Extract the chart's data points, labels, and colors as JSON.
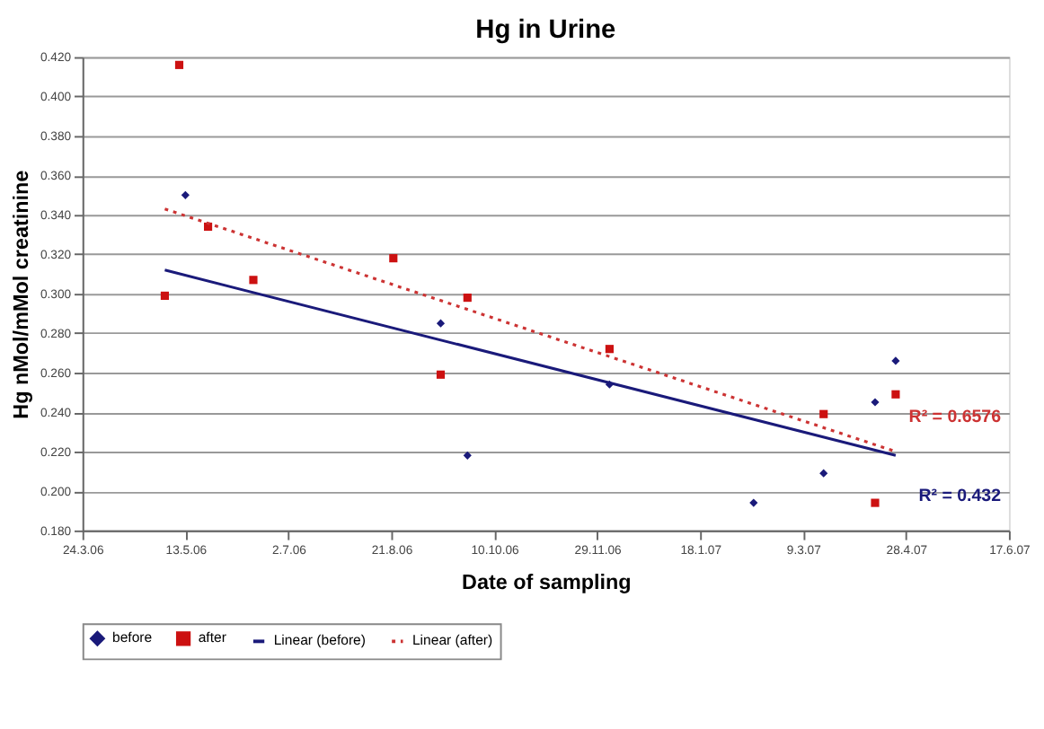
{
  "chart_data": {
    "type": "scatter",
    "title": "Hg in Urine",
    "xlabel": "Date of sampling",
    "ylabel": "Hg nMol/mMol creatinine",
    "series": [
      {
        "name": "before",
        "color": "#1a1a7a",
        "marker": "diamond",
        "x": [
          "2006-05-13",
          "2006-09-14",
          "2006-09-27",
          "2006-12-05",
          "2007-02-13",
          "2007-03-19",
          "2007-04-13",
          "2007-04-23"
        ],
        "values": [
          0.35,
          0.285,
          0.218,
          0.254,
          0.194,
          0.209,
          0.245,
          0.266
        ]
      },
      {
        "name": "after",
        "color": "#cc1111",
        "marker": "square",
        "x": [
          "2006-05-10",
          "2006-05-03",
          "2006-05-24",
          "2006-06-15",
          "2006-08-22",
          "2006-09-14",
          "2006-09-27",
          "2006-12-05",
          "2007-03-19",
          "2007-04-13",
          "2007-04-23"
        ],
        "values": [
          0.416,
          0.299,
          0.334,
          0.307,
          0.318,
          0.259,
          0.298,
          0.272,
          0.239,
          0.194,
          0.249
        ]
      },
      {
        "name": "Linear (before)",
        "type": "line",
        "color": "#1a1a7a",
        "line_style": "solid",
        "x": [
          "2006-05-03",
          "2007-04-23"
        ],
        "values": [
          0.312,
          0.218
        ]
      },
      {
        "name": "Linear (after)",
        "type": "line",
        "color": "#cc3333",
        "line_style": "dotted",
        "x": [
          "2006-05-03",
          "2007-04-23"
        ],
        "values": [
          0.343,
          0.22
        ]
      }
    ],
    "annotations": [
      {
        "text": "R² = 0.6576",
        "x": "2007-04-23",
        "y": 0.22
      },
      {
        "text": "R² = 0.432",
        "x": "2007-04-23",
        "y": 0.218
      }
    ],
    "xlim": [
      "2006-03-24",
      "2007-06-17"
    ],
    "xticks": [
      {
        "value": "2006-03-24",
        "label": "24.3.06"
      },
      {
        "value": "2006-05-13",
        "label": "13.5.06"
      },
      {
        "value": "2006-07-02",
        "label": "2.7.06"
      },
      {
        "value": "2006-08-21",
        "label": "21.8.06"
      },
      {
        "value": "2006-10-10",
        "label": "10.10.06"
      },
      {
        "value": "2006-11-29",
        "label": "29.11.06"
      },
      {
        "value": "2007-01-18",
        "label": "18.1.07"
      },
      {
        "value": "2007-03-09",
        "label": "9.3.07"
      },
      {
        "value": "2007-04-28",
        "label": "28.4.07"
      },
      {
        "value": "2007-06-17",
        "label": "17.6.07"
      }
    ],
    "ylim": [
      0.18,
      0.42
    ],
    "yticks": [
      {
        "value": 0.18,
        "label": "0.180"
      },
      {
        "value": 0.2,
        "label": "0.200"
      },
      {
        "value": 0.22,
        "label": "0.220"
      },
      {
        "value": 0.24,
        "label": "0.240"
      },
      {
        "value": 0.26,
        "label": "0.260"
      },
      {
        "value": 0.28,
        "label": "0.280"
      },
      {
        "value": 0.3,
        "label": "0.300"
      },
      {
        "value": 0.32,
        "label": "0.320"
      },
      {
        "value": 0.34,
        "label": "0.340"
      },
      {
        "value": 0.36,
        "label": "0.360"
      },
      {
        "value": 0.38,
        "label": "0.380"
      },
      {
        "value": 0.4,
        "label": "0.400"
      },
      {
        "value": 0.42,
        "label": "0.420"
      }
    ],
    "grid": "y",
    "legend": "bottom"
  }
}
